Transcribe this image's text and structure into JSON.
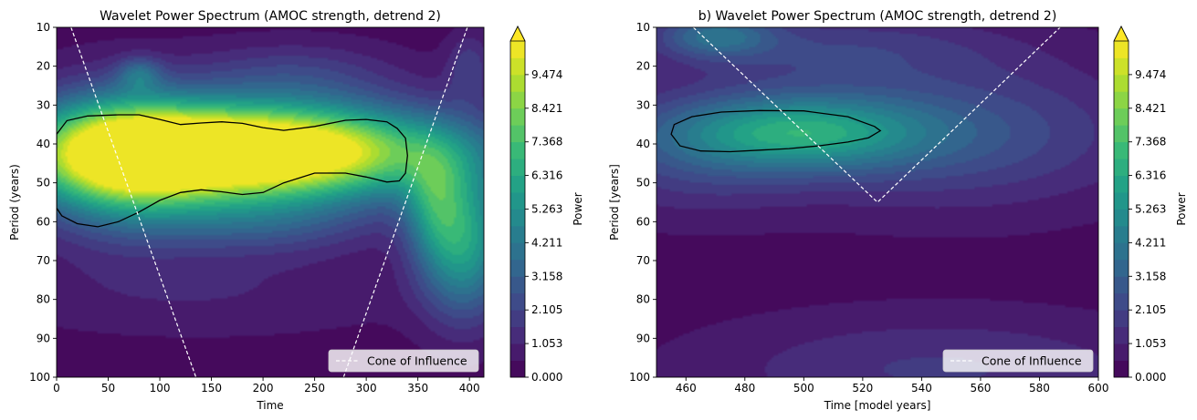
{
  "chart_data": [
    {
      "type": "heatmap",
      "title": "Wavelet Power Spectrum (AMOC strength, detrend 2)",
      "xlabel": "Time",
      "ylabel": "Period (years)",
      "xlim": [
        0,
        414
      ],
      "ylim": [
        100,
        10
      ],
      "x_ticks": [
        0,
        50,
        100,
        150,
        200,
        250,
        300,
        350,
        400
      ],
      "y_ticks": [
        10,
        20,
        30,
        40,
        50,
        60,
        70,
        80,
        90,
        100
      ],
      "colorbar_label": "Power",
      "colorbar_ticks": [
        "0.000",
        "1.053",
        "2.105",
        "3.158",
        "4.211",
        "5.263",
        "6.316",
        "7.368",
        "8.421",
        "9.474"
      ],
      "colorbar_range": [
        0,
        10.526
      ],
      "colormap": "viridis",
      "legend": {
        "label": "Cone of Influence",
        "placement": "lower-right"
      },
      "power_features": [
        {
          "x_center": 185,
          "period_center": 42,
          "x_spread": 130,
          "period_spread": 8.5,
          "power": 14.0
        },
        {
          "x_center": 60,
          "period_center": 44,
          "x_spread": 60,
          "period_spread": 12,
          "power": 6.0
        },
        {
          "x_center": 395,
          "period_center": 65,
          "x_spread": 30,
          "period_spread": 13,
          "power": 5.6
        },
        {
          "x_center": 365,
          "period_center": 55,
          "x_spread": 20,
          "period_spread": 10,
          "power": 3.0
        },
        {
          "x_center": 80,
          "period_center": 22,
          "x_spread": 15,
          "period_spread": 3,
          "power": 2.4
        },
        {
          "x_center": 195,
          "period_center": 60,
          "x_spread": 80,
          "period_spread": 6,
          "power": 2.2
        },
        {
          "x_center": 230,
          "period_center": 22,
          "x_spread": 70,
          "period_spread": 6,
          "power": 1.5
        },
        {
          "x_center": 400,
          "period_center": 20,
          "x_spread": 15,
          "period_spread": 6,
          "power": 1.6
        },
        {
          "x_center": 140,
          "period_center": 78,
          "x_spread": 150,
          "period_spread": 8,
          "power": 0.8
        }
      ],
      "significance_contours": [
        {
          "x": [
            0,
            10,
            30,
            60,
            80,
            100,
            120,
            140,
            160,
            180,
            200,
            220,
            250,
            280,
            300,
            320,
            330,
            338,
            340,
            338,
            332,
            320,
            300,
            280,
            250,
            220,
            200,
            180,
            160,
            140,
            120,
            100,
            80,
            60,
            40,
            20,
            5,
            0
          ],
          "y": [
            37.5,
            34,
            32.8,
            32.5,
            32.5,
            33.7,
            35,
            34.6,
            34.3,
            34.7,
            35.8,
            36.5,
            35.5,
            33.9,
            33.7,
            34.3,
            36,
            38.5,
            43,
            47.5,
            49.5,
            49.8,
            48.5,
            47.5,
            47.5,
            50,
            52.5,
            53,
            52.3,
            51.8,
            52.5,
            54.5,
            57.5,
            60,
            61.3,
            60.5,
            58.5,
            56.5
          ]
        }
      ],
      "cone_of_influence": [
        {
          "x": [
            14,
            135
          ],
          "y": [
            10,
            100
          ]
        },
        {
          "x": [
            278,
            398
          ],
          "y": [
            100,
            10
          ]
        }
      ]
    },
    {
      "type": "heatmap",
      "title": "b) Wavelet Power Spectrum (AMOC strength, detrend 2)",
      "xlabel": "Time [model years]",
      "ylabel": "Period [years]",
      "xlim": [
        450,
        600
      ],
      "ylim": [
        100,
        10
      ],
      "x_ticks": [
        460,
        480,
        500,
        520,
        540,
        560,
        580,
        600
      ],
      "y_ticks": [
        10,
        20,
        30,
        40,
        50,
        60,
        70,
        80,
        90,
        100
      ],
      "colorbar_label": "Power",
      "colorbar_ticks": [
        "0.000",
        "1.053",
        "2.105",
        "3.158",
        "4.211",
        "5.263",
        "6.316",
        "7.368",
        "8.421",
        "9.474"
      ],
      "colorbar_range": [
        0,
        10.526
      ],
      "colormap": "viridis",
      "legend": {
        "label": "Cone of Influence",
        "placement": "lower-right"
      },
      "power_features": [
        {
          "x_center": 497,
          "period_center": 37,
          "x_spread": 30,
          "period_spread": 6.5,
          "power": 4.6
        },
        {
          "x_center": 515,
          "period_center": 37,
          "x_spread": 60,
          "period_spread": 12,
          "power": 1.5
        },
        {
          "x_center": 470,
          "period_center": 12,
          "x_spread": 14,
          "period_spread": 4,
          "power": 3.0
        },
        {
          "x_center": 510,
          "period_center": 15,
          "x_spread": 40,
          "period_spread": 6,
          "power": 1.4
        },
        {
          "x_center": 560,
          "period_center": 37,
          "x_spread": 40,
          "period_spread": 14,
          "power": 1.2
        },
        {
          "x_center": 545,
          "period_center": 98,
          "x_spread": 55,
          "period_spread": 10,
          "power": 1.4
        },
        {
          "x_center": 460,
          "period_center": 45,
          "x_spread": 25,
          "period_spread": 10,
          "power": 1.0
        }
      ],
      "significance_contours": [
        {
          "x": [
            455,
            456,
            462,
            472,
            485,
            500,
            515,
            524,
            526,
            522,
            515,
            505,
            495,
            485,
            475,
            465,
            458,
            455
          ],
          "y": [
            37.5,
            35,
            33,
            31.8,
            31.4,
            31.5,
            33,
            35.5,
            36.6,
            38.4,
            39.5,
            40.5,
            41.2,
            41.6,
            42,
            41.8,
            40.5,
            37.5
          ]
        }
      ],
      "cone_of_influence": [
        {
          "x": [
            462.5,
            525,
            587
          ],
          "y": [
            10,
            55,
            10
          ]
        }
      ]
    }
  ]
}
